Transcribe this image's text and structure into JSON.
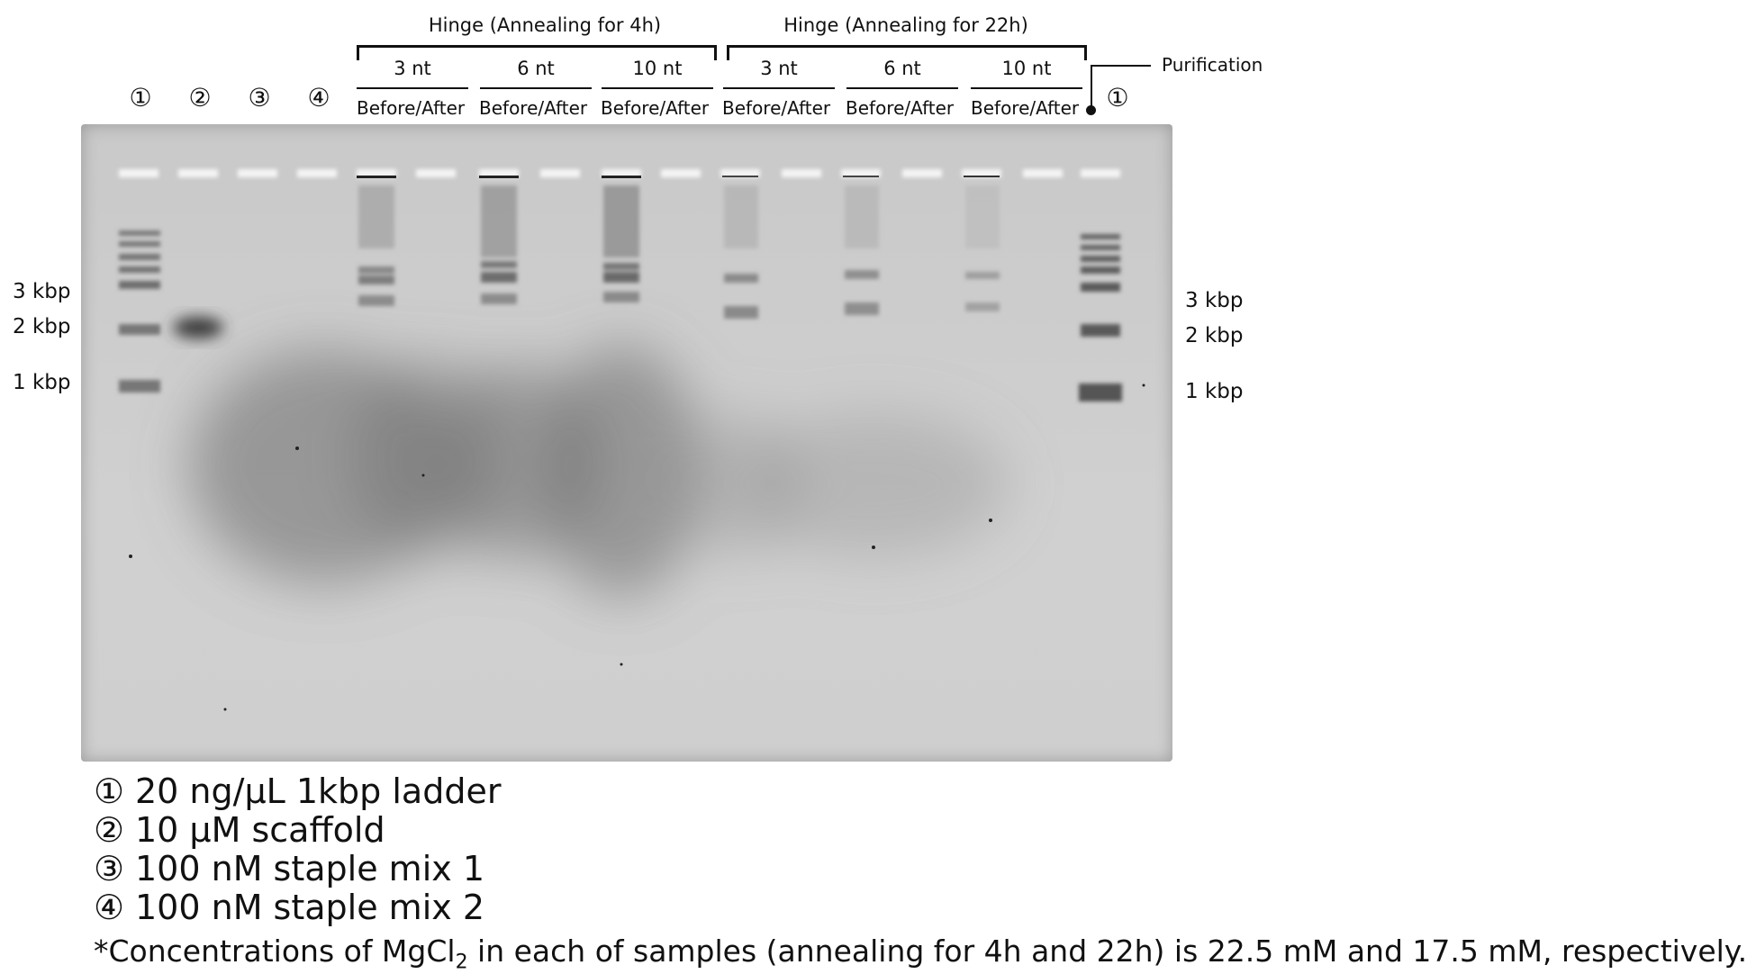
{
  "header": {
    "group_4h": "Hinge (Annealing for 4h)",
    "group_22h": "Hinge (Annealing for 22h)",
    "sub_4h": [
      "3 nt",
      "6 nt",
      "10 nt"
    ],
    "sub_22h": [
      "3 nt",
      "6 nt",
      "10 nt"
    ],
    "before_after": "Before/After",
    "purification": "Purification",
    "lanes": [
      "①",
      "②",
      "③",
      "④",
      "①"
    ]
  },
  "markers_left": [
    "3 kbp",
    "2 kbp",
    "1 kbp"
  ],
  "markers_right": [
    "3 kbp",
    "2 kbp",
    "1 kbp"
  ],
  "legend": [
    {
      "num": "①",
      "text": "20 ng/µL 1kbp ladder"
    },
    {
      "num": "②",
      "text": "10 µM scaffold"
    },
    {
      "num": "③",
      "text": "100 nM staple mix 1"
    },
    {
      "num": "④",
      "text": "100 nM staple mix 2"
    }
  ],
  "footnote": {
    "prefix": "*Concentrations of MgCl",
    "subscript": "2",
    "suffix": " in each of samples (annealing for 4h and 22h) is 22.5 mM and 17.5 mM, respectively."
  }
}
